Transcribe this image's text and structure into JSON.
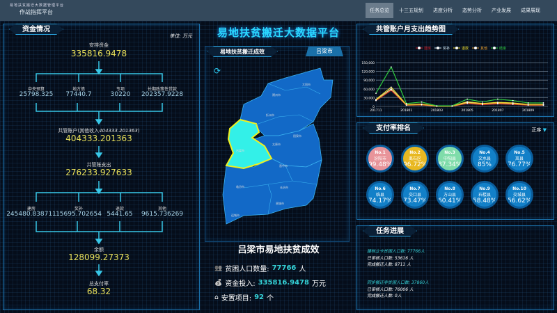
{
  "header": {
    "subtitle": "易地扶贫搬迁大数据管理平台",
    "title": "作战指挥平台",
    "nav": [
      "任务总览",
      "十三五规划",
      "进度分析",
      "态势分析",
      "产业发展",
      "成果展现"
    ],
    "active": 0
  },
  "center": {
    "title": "易地扶贫搬迁大数据平台",
    "map_panel_title": "易地扶贫搬迁成效",
    "city_tab": "吕梁市",
    "refresh_icon": "refresh-icon",
    "cities": [
      "大同市",
      "朔州市",
      "忻州市",
      "吕梁市",
      "太原市",
      "阳泉市",
      "晋中市",
      "长治市",
      "临汾市",
      "晋城市",
      "运城市"
    ],
    "selected_city": "吕梁市",
    "highlight_color": "#33f0e8",
    "summary_title": "吕梁市易地扶贫成效",
    "stats": [
      {
        "icon": "people-icon",
        "label": "贫困人口数量: ",
        "value": "77766",
        "unit": "人"
      },
      {
        "icon": "money-bag-icon",
        "label": "资金投入: ",
        "value": "335816.9478",
        "unit": "万元"
      },
      {
        "icon": "house-icon",
        "label": "安置项目: ",
        "value": "92",
        "unit": "个"
      }
    ]
  },
  "funds": {
    "title": "资金情况",
    "unit": "单位: 万元",
    "arranged": {
      "label": "安排资金",
      "value": "335816.9478"
    },
    "sources": [
      {
        "label": "中央预算",
        "value": "25798.325"
      },
      {
        "label": "地方债",
        "value": "77440.7"
      },
      {
        "label": "专项",
        "value": "30220"
      },
      {
        "label": "长期政策性贷款",
        "value": "202357.9228"
      }
    ],
    "shared": {
      "label": "共管账户(其他收入",
      "extra": "404333.201363",
      "close": ")",
      "value": "404333.201363"
    },
    "spend": {
      "label": "共管账支出",
      "value": "276233.927633"
    },
    "uses": [
      {
        "label": "建房",
        "value": "245480.838711"
      },
      {
        "label": "奖补",
        "value": "15695.702654"
      },
      {
        "label": "退款",
        "value": "5441.65"
      },
      {
        "label": "其他",
        "value": "9615.736269"
      }
    ],
    "balance": {
      "label": "余额",
      "value": "128099.27373"
    },
    "rate": {
      "label": "总支付率",
      "value": "68.32"
    }
  },
  "chart_data": {
    "type": "line",
    "title": "共管账户月支出趋势图",
    "legend_position": "top",
    "x": [
      "201711",
      "201712",
      "201801",
      "201802",
      "201803",
      "201804",
      "201805",
      "201806",
      "201807",
      "201808",
      "201809",
      "201810"
    ],
    "xticks": [
      "201711",
      "201801",
      "201803",
      "201805",
      "201807",
      "201809"
    ],
    "yticks": [
      "0",
      "30,000",
      "60,000",
      "90,000",
      "120,000",
      "150,000"
    ],
    "ylim": [
      0,
      150000
    ],
    "series": [
      {
        "name": "建房",
        "color": "#d0202a",
        "values": [
          20000,
          55000,
          4000,
          5000,
          500,
          500,
          10000,
          6000,
          9000,
          7000,
          4000,
          4000
        ]
      },
      {
        "name": "奖补",
        "color": "#d8eef8",
        "values": [
          22000,
          60000,
          5000,
          7000,
          800,
          800,
          14000,
          9000,
          12000,
          10000,
          6000,
          6000
        ]
      },
      {
        "name": "退款",
        "color": "#f0e030",
        "values": [
          24000,
          66000,
          6000,
          8000,
          900,
          900,
          16000,
          10000,
          14000,
          12000,
          7000,
          7000
        ]
      },
      {
        "name": "其他",
        "color": "#e8a030",
        "values": [
          21000,
          58000,
          4500,
          6000,
          600,
          600,
          12000,
          8000,
          11000,
          9000,
          5000,
          5000
        ]
      },
      {
        "name": "结余",
        "color": "#30d040",
        "values": [
          45000,
          135000,
          10000,
          15000,
          2000,
          2000,
          25000,
          15000,
          25000,
          20000,
          12000,
          12000
        ]
      }
    ]
  },
  "ranking": {
    "title": "支付率排名",
    "sort_label": "正序",
    "items": [
      {
        "no": "No.1",
        "name": "汾阳市",
        "pct": "99.48%",
        "color": "#e8949a"
      },
      {
        "no": "No.2",
        "name": "离石区",
        "pct": "96.72%",
        "color": "#e8b820"
      },
      {
        "no": "No.3",
        "name": "中阳县",
        "pct": "87.34%",
        "color": "#7fdcaa"
      },
      {
        "no": "No.4",
        "name": "文水县",
        "pct": "85%",
        "color": "#1280c8"
      },
      {
        "no": "No.5",
        "name": "岚县",
        "pct": "76.77%",
        "color": "#1280c8"
      },
      {
        "no": "No.6",
        "name": "临县",
        "pct": "74.17%",
        "color": "#1280c8"
      },
      {
        "no": "No.7",
        "name": "交口县",
        "pct": "73.47%",
        "color": "#1280c8"
      },
      {
        "no": "No.8",
        "name": "方山县",
        "pct": "60.41%",
        "color": "#1280c8"
      },
      {
        "no": "No.9",
        "name": "石楼县",
        "pct": "58.48%",
        "color": "#1280c8"
      },
      {
        "no": "No.10",
        "name": "交城县",
        "pct": "56.62%",
        "color": "#1280c8"
      }
    ]
  },
  "tasks": {
    "title": "任务进展",
    "groups": [
      {
        "head": "建档立卡贫困人口数: 77766人",
        "lines": [
          "已审核人口数: 53616 人",
          "完成搬迁人数: 8711 人"
        ]
      },
      {
        "head": "同步搬迁非贫困人口数: 37860人",
        "lines": [
          "已审核人口数: 76006 人",
          "完成搬迁人数: 0人"
        ]
      }
    ]
  }
}
